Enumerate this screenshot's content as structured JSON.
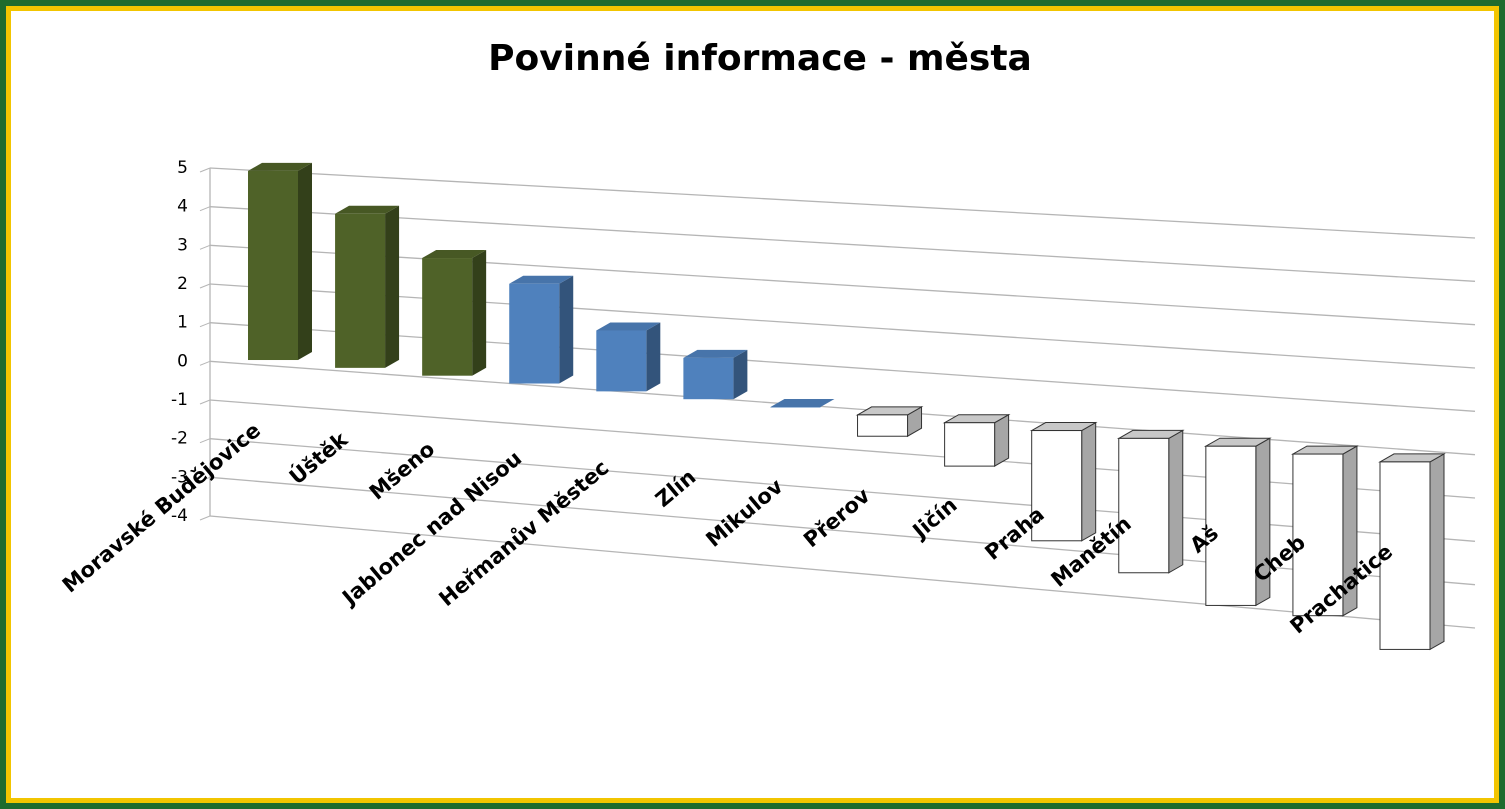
{
  "chart_data": {
    "type": "bar3d",
    "title": "Povinné informace - města",
    "categories": [
      "Moravské Budějovice",
      "Úštěk",
      "Mšeno",
      "Jablonec nad Nisou",
      "Heřmanův Městec",
      "Zlín",
      "Mikulov",
      "Přerov",
      "Jičín",
      "Praha",
      "Manětín",
      "Aš",
      "Cheb",
      "Prachatice"
    ],
    "values": [
      5,
      4,
      3,
      2.5,
      1.5,
      1,
      0,
      -0.5,
      -1,
      -2.5,
      -3,
      -3.5,
      -3.5,
      -4
    ],
    "colors": [
      "#4f6228",
      "#4f6228",
      "#4f6228",
      "#4f81bd",
      "#4f81bd",
      "#4f81bd",
      "#4f81bd",
      "#ffffff",
      "#ffffff",
      "#ffffff",
      "#ffffff",
      "#ffffff",
      "#ffffff",
      "#ffffff"
    ],
    "ylim": [
      -4,
      5
    ],
    "yticks": [
      -4,
      -3,
      -2,
      -1,
      0,
      1,
      2,
      3,
      4,
      5
    ],
    "grid": true
  }
}
